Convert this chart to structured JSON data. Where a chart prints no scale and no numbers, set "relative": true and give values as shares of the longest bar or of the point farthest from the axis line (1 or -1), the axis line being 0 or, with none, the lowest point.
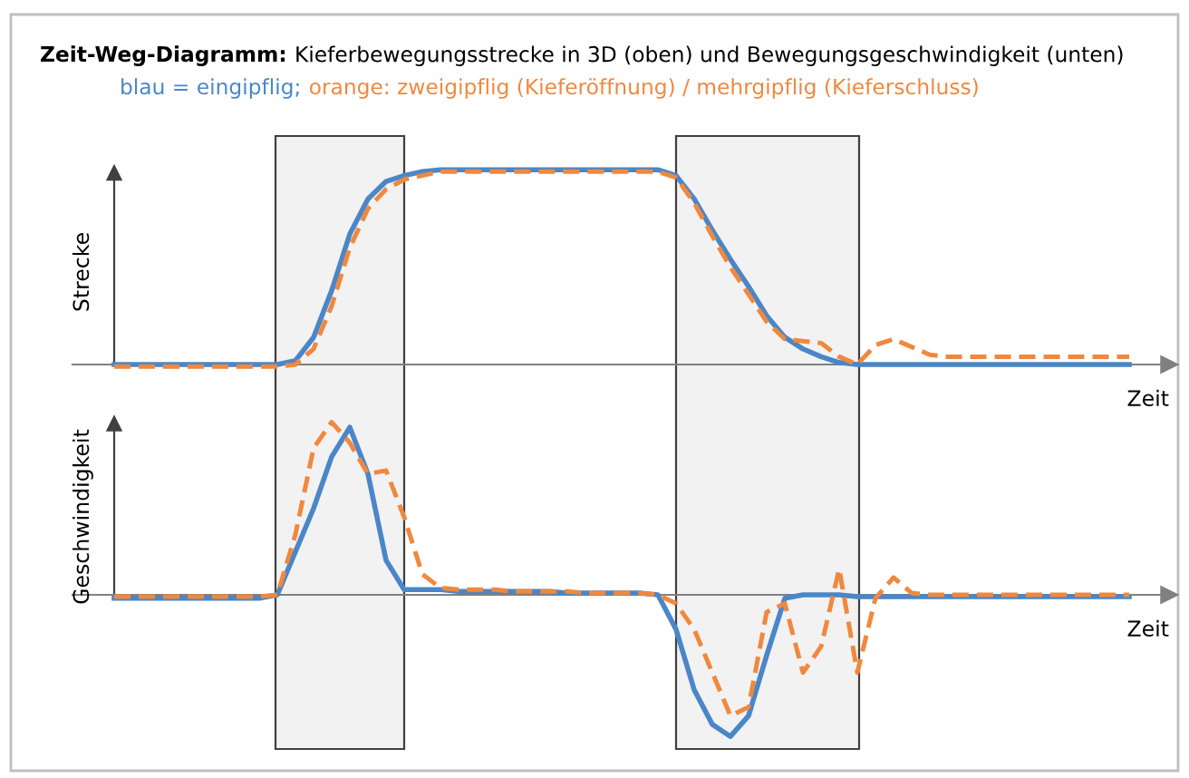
{
  "chart_data": [
    {
      "type": "line",
      "relative": true,
      "title": "Zeit-Weg-Diagramm:",
      "subtitle": "Kieferbewegungsstrecke in 3D (oben) und Bewegungsgeschwindigkeit (unten)",
      "ylabel": "Strecke",
      "xlabel": "Zeit",
      "categories": [
        null,
        null,
        null,
        null,
        null,
        null,
        null,
        null,
        null,
        null,
        null,
        null,
        null,
        null,
        null,
        null,
        null,
        null,
        null,
        null,
        null,
        null,
        null,
        null,
        null,
        null,
        null,
        null,
        null,
        null,
        null,
        null,
        null,
        null,
        null,
        null,
        null,
        null,
        null,
        null,
        null,
        null,
        null,
        null,
        null,
        null,
        null,
        null,
        null,
        null,
        null,
        null,
        null,
        null,
        null,
        null,
        null
      ],
      "series": [
        {
          "name": "blau = eingipflig;",
          "color": "#4a86c8",
          "line_style": "solid",
          "values": [
            0,
            0,
            0,
            0,
            0,
            0,
            0,
            0,
            0,
            0,
            0.02,
            0.14,
            0.38,
            0.67,
            0.85,
            0.94,
            0.97,
            0.99,
            1,
            1,
            1,
            1,
            1,
            1,
            1,
            1,
            1,
            1,
            1,
            1,
            1,
            0.97,
            0.85,
            0.69,
            0.54,
            0.4,
            0.25,
            0.14,
            0.08,
            0.04,
            0.01,
            0,
            0,
            0,
            0,
            0,
            0,
            0,
            0,
            0,
            0,
            0,
            0,
            0,
            0,
            0,
            0
          ]
        },
        {
          "name": "orange: zweigipflig (Kieferöffnung) / mehrgipflig (Kieferschluss)",
          "color": "#f0883e",
          "line_style": "dashed",
          "values": [
            -0.01,
            -0.01,
            -0.01,
            -0.01,
            -0.01,
            -0.01,
            -0.01,
            -0.01,
            -0.01,
            -0.01,
            0,
            0.08,
            0.3,
            0.6,
            0.8,
            0.9,
            0.95,
            0.97,
            0.99,
            0.99,
            0.99,
            0.99,
            0.99,
            0.99,
            0.99,
            0.99,
            0.99,
            0.99,
            0.99,
            0.99,
            0.99,
            0.96,
            0.83,
            0.66,
            0.5,
            0.36,
            0.22,
            0.13,
            0.12,
            0.11,
            0.04,
            0,
            0.1,
            0.13,
            0.09,
            0.05,
            0.04,
            0.04,
            0.04,
            0.04,
            0.04,
            0.04,
            0.04,
            0.04,
            0.04,
            0.04,
            0.04
          ]
        }
      ]
    },
    {
      "type": "line",
      "relative": true,
      "ylabel": "Geschwindigkeit",
      "xlabel": "Zeit",
      "categories": [
        null,
        null,
        null,
        null,
        null,
        null,
        null,
        null,
        null,
        null,
        null,
        null,
        null,
        null,
        null,
        null,
        null,
        null,
        null,
        null,
        null,
        null,
        null,
        null,
        null,
        null,
        null,
        null,
        null,
        null,
        null,
        null,
        null,
        null,
        null,
        null,
        null,
        null,
        null,
        null,
        null,
        null,
        null,
        null,
        null,
        null,
        null,
        null,
        null,
        null,
        null,
        null,
        null,
        null,
        null,
        null,
        null
      ],
      "series": [
        {
          "color": "#4a86c8",
          "line_style": "solid",
          "values": [
            -0.02,
            -0.02,
            -0.02,
            -0.02,
            -0.02,
            -0.02,
            -0.02,
            -0.02,
            -0.02,
            0,
            0.25,
            0.5,
            0.8,
            0.97,
            0.7,
            0.2,
            0.03,
            0.03,
            0.03,
            0.02,
            0.02,
            0.02,
            0.02,
            0.02,
            0.02,
            0.01,
            0.01,
            0.01,
            0.01,
            0.01,
            0,
            -0.2,
            -0.55,
            -0.75,
            -0.82,
            -0.7,
            -0.35,
            -0.02,
            0,
            0,
            0,
            -0.01,
            -0.01,
            -0.01,
            -0.01,
            -0.01,
            -0.01,
            -0.01,
            -0.01,
            -0.01,
            -0.01,
            -0.01,
            -0.01,
            -0.01,
            -0.01,
            -0.01,
            -0.01
          ]
        },
        {
          "color": "#f0883e",
          "line_style": "dashed",
          "values": [
            -0.01,
            -0.01,
            -0.01,
            -0.01,
            -0.01,
            -0.01,
            -0.01,
            -0.01,
            -0.01,
            0,
            0.35,
            0.85,
            1,
            0.88,
            0.7,
            0.72,
            0.45,
            0.12,
            0.04,
            0.03,
            0.03,
            0.03,
            0.02,
            0.02,
            0.02,
            0.02,
            0.01,
            0.01,
            0.01,
            0.01,
            0,
            -0.05,
            -0.2,
            -0.45,
            -0.7,
            -0.65,
            -0.1,
            -0.05,
            -0.45,
            -0.3,
            0.15,
            -0.45,
            -0.02,
            0.1,
            0.01,
            0,
            0,
            0,
            0,
            0,
            0,
            0,
            0,
            0,
            0,
            0,
            0
          ]
        }
      ]
    }
  ]
}
